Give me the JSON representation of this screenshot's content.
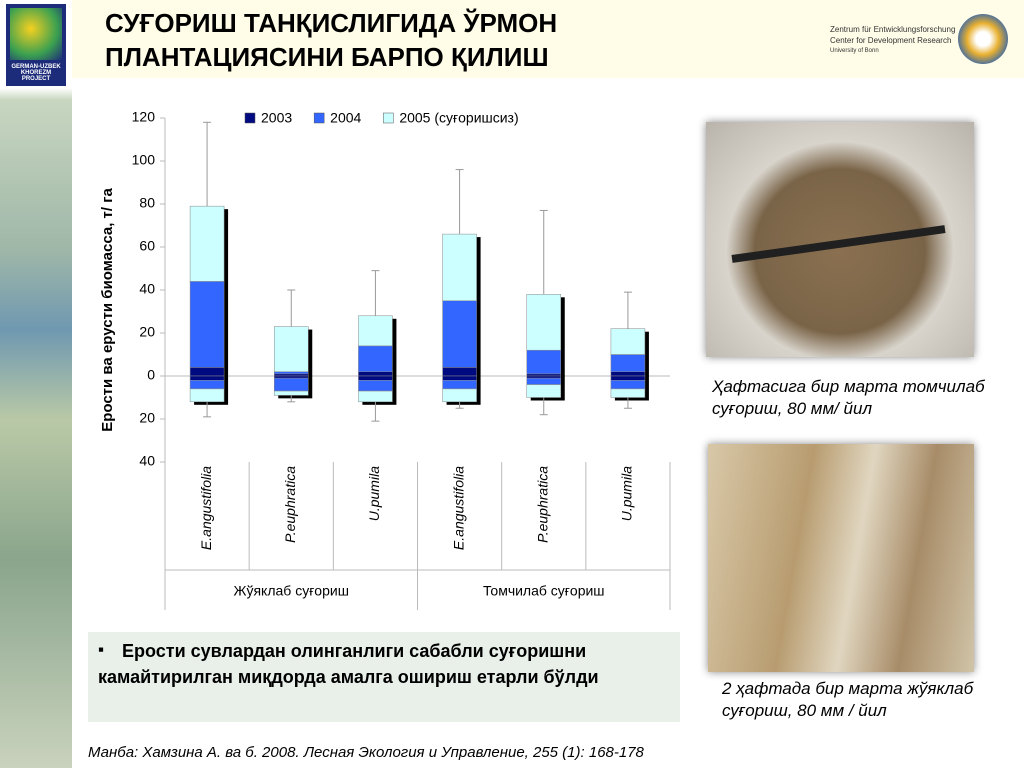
{
  "header": {
    "title_lines": [
      "СУҒОРИШ ТАНҚИСЛИГИДА ЎРМОН",
      "ПЛАНТАЦИЯСИНИ БАРПО ҚИЛИШ"
    ],
    "logo_left": [
      "GERMAN-UZBEK",
      "KHOREZM PROJECT"
    ],
    "logo_right": [
      "Zentrum für Entwicklungsforschung",
      "Center for Development Research",
      "University of Bonn"
    ]
  },
  "chart_data": {
    "type": "bar",
    "ylabel": "Ерости ва ерусти биомасса, т/ га",
    "categories": [
      "E.angustifolia",
      "P.euphratica",
      "U.pumila",
      "E.angustifolia",
      "P.euphratica",
      "U.pumila"
    ],
    "groups": [
      "Жўяклаб суғориш",
      "Томчилаб суғориш"
    ],
    "series": [
      {
        "name": "2003",
        "color": "#000a80",
        "values": [
          4,
          1,
          2,
          4,
          1,
          2
        ],
        "root_values": [
          -2,
          -1,
          -2,
          -2,
          -1,
          -2
        ]
      },
      {
        "name": "2004",
        "color": "#3366ff",
        "values": [
          40,
          1,
          12,
          31,
          11,
          8
        ],
        "root_values": [
          -4,
          -6,
          -5,
          -4,
          -3,
          -4
        ]
      },
      {
        "name": "2005 (суғоришсиз)",
        "color": "#ccffff",
        "values": [
          35,
          21,
          14,
          31,
          26,
          12
        ],
        "root_values": [
          -6,
          -2,
          -5,
          -6,
          -6,
          -4
        ]
      }
    ],
    "whisker_high": [
      118,
      40,
      49,
      96,
      77,
      39
    ],
    "whisker_low": [
      -19,
      -12,
      -21,
      -15,
      -18,
      -15
    ],
    "ylim": [
      -40,
      120
    ],
    "yticks": [
      120,
      100,
      80,
      60,
      40,
      20,
      0,
      {
        "value": -20,
        "label": "20"
      },
      {
        "value": -40,
        "label": "40"
      }
    ],
    "legend": "top"
  },
  "photos": [
    {
      "caption": "Ҳафтасига бир марта томчилаб суғориш, 80 мм/ йил"
    },
    {
      "caption": "2 ҳафтада бир марта жўяклаб суғориш, 80 мм / йил"
    }
  ],
  "bullet": "Ерости сувлардан олинганлиги сабабли суғоришни камайтирилган миқдорда амалга ошириш етарли бўлди",
  "source": {
    "label": "Манба:",
    "text": "Хамзина А. ва б. 2008. Лесная Экология и Управление, 255 (1): 168-178"
  }
}
